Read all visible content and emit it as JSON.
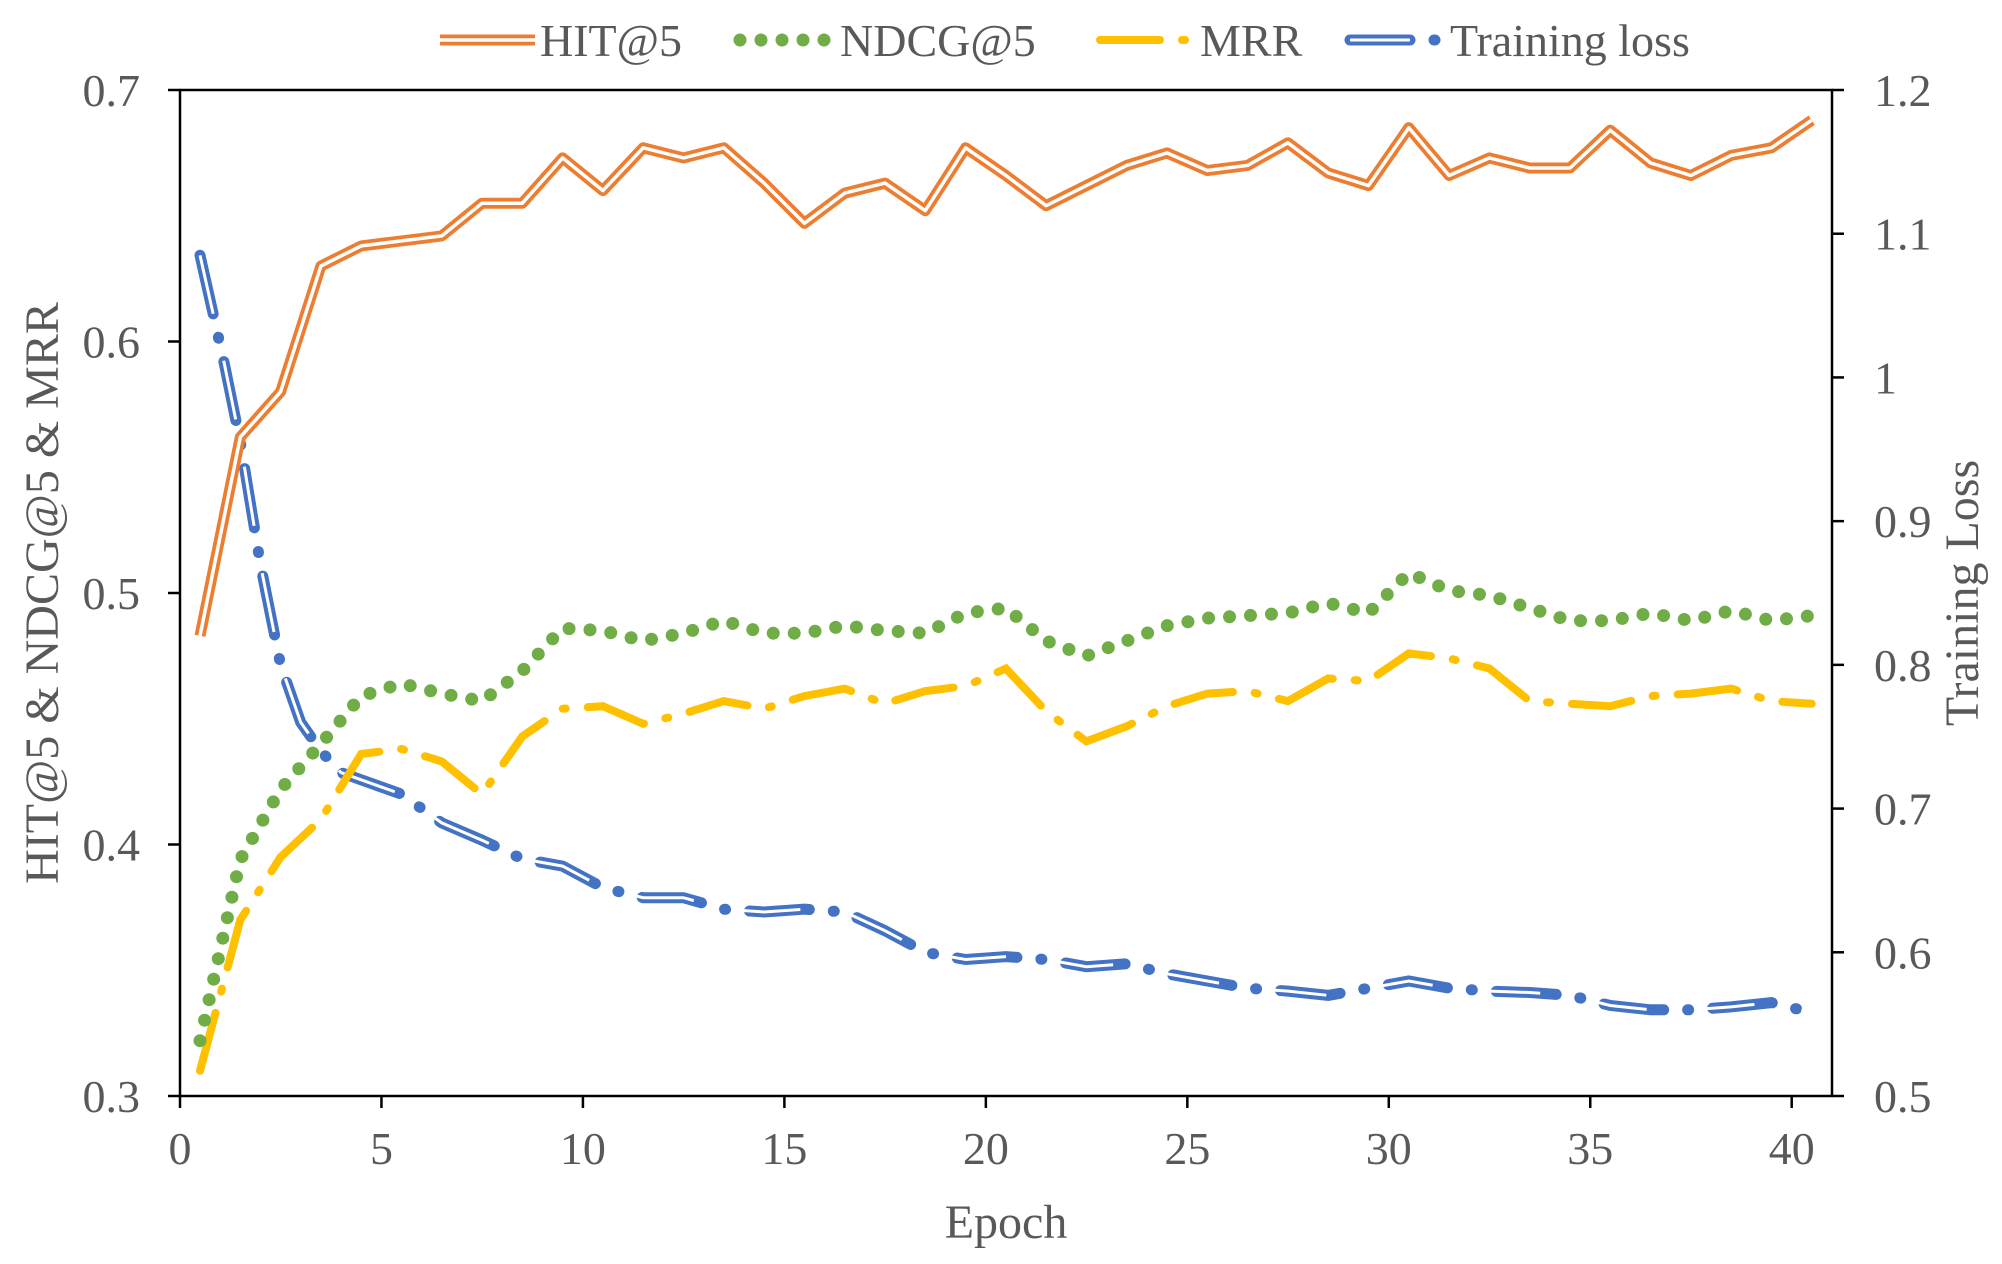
{
  "chart_data": {
    "type": "line",
    "title": "",
    "xlabel": "Epoch",
    "ylabel": "HIT@5 & NDCG@5 & MRR",
    "y2label": "Training Loss",
    "xlim": [
      0,
      41
    ],
    "ylim": [
      0.3,
      0.7
    ],
    "y2lim": [
      0.5,
      1.2
    ],
    "x_ticks": [
      "0",
      "5",
      "10",
      "15",
      "20",
      "25",
      "30",
      "35",
      "40"
    ],
    "y_ticks": [
      "0.3",
      "0.4",
      "0.5",
      "0.6",
      "0.7"
    ],
    "y2_ticks": [
      "0.5",
      "0.6",
      "0.7",
      "0.8",
      "0.9",
      "1",
      "1.1",
      "1.2"
    ],
    "legend_position": "top",
    "grid": false,
    "series": [
      {
        "name": "HIT@5",
        "axis": "left",
        "style": "double",
        "color": "#ED7D31",
        "x": [
          0,
          1,
          2,
          3,
          4,
          5,
          6,
          7,
          8,
          9,
          10,
          11,
          12,
          13,
          14,
          15,
          16,
          17,
          18,
          19,
          20,
          21,
          22,
          23,
          24,
          25,
          26,
          27,
          28,
          29,
          30,
          31,
          32,
          33,
          34,
          35,
          36,
          37,
          38,
          39,
          40
        ],
        "values": [
          0.483,
          0.562,
          0.58,
          0.63,
          0.638,
          0.64,
          0.642,
          0.655,
          0.655,
          0.673,
          0.66,
          0.677,
          0.673,
          0.677,
          0.663,
          0.647,
          0.659,
          0.663,
          0.652,
          0.677,
          0.666,
          0.654,
          0.662,
          0.67,
          0.675,
          0.668,
          0.67,
          0.679,
          0.667,
          0.662,
          0.685,
          0.666,
          0.673,
          0.669,
          0.669,
          0.684,
          0.671,
          0.666,
          0.674,
          0.677,
          0.688
        ]
      },
      {
        "name": "NDCG@5",
        "axis": "left",
        "style": "dotted",
        "color": "#70AD47",
        "x": [
          0,
          1,
          2,
          3,
          4,
          5,
          6,
          7,
          8,
          9,
          10,
          11,
          12,
          13,
          14,
          15,
          16,
          17,
          18,
          19,
          20,
          21,
          22,
          23,
          24,
          25,
          26,
          27,
          28,
          29,
          30,
          31,
          32,
          33,
          34,
          35,
          36,
          37,
          38,
          39,
          40
        ],
        "values": [
          0.322,
          0.394,
          0.422,
          0.44,
          0.459,
          0.464,
          0.46,
          0.457,
          0.469,
          0.486,
          0.485,
          0.481,
          0.484,
          0.489,
          0.484,
          0.484,
          0.487,
          0.485,
          0.484,
          0.492,
          0.494,
          0.481,
          0.475,
          0.481,
          0.487,
          0.49,
          0.491,
          0.492,
          0.496,
          0.492,
          0.508,
          0.501,
          0.499,
          0.494,
          0.489,
          0.489,
          0.492,
          0.489,
          0.493,
          0.489,
          0.491
        ]
      },
      {
        "name": "MRR",
        "axis": "left",
        "style": "dashdot",
        "color": "#FFC000",
        "x": [
          0,
          1,
          2,
          3,
          4,
          5,
          6,
          7,
          8,
          9,
          10,
          11,
          12,
          13,
          14,
          15,
          16,
          17,
          18,
          19,
          20,
          21,
          22,
          23,
          24,
          25,
          26,
          27,
          28,
          29,
          30,
          31,
          32,
          33,
          34,
          35,
          36,
          37,
          38,
          39,
          40
        ],
        "values": [
          0.31,
          0.37,
          0.395,
          0.41,
          0.436,
          0.438,
          0.433,
          0.42,
          0.443,
          0.454,
          0.455,
          0.448,
          0.452,
          0.457,
          0.454,
          0.459,
          0.462,
          0.456,
          0.461,
          0.463,
          0.47,
          0.453,
          0.441,
          0.447,
          0.455,
          0.46,
          0.461,
          0.457,
          0.466,
          0.465,
          0.476,
          0.474,
          0.47,
          0.457,
          0.456,
          0.455,
          0.459,
          0.46,
          0.462,
          0.457,
          0.456
        ]
      },
      {
        "name": "Training loss",
        "axis": "right",
        "style": "dashdot-double",
        "color": "#4472C4",
        "x": [
          0,
          0.6,
          1,
          1.5,
          2,
          2.5,
          3,
          3.5,
          4,
          5,
          6,
          7,
          8,
          9,
          10,
          11,
          12,
          13,
          14,
          15,
          16,
          17,
          18,
          19,
          20,
          21,
          22,
          23,
          24,
          25,
          26,
          27,
          28,
          29,
          30,
          31,
          32,
          33,
          34,
          35,
          36,
          37,
          38,
          39,
          40
        ],
        "values": [
          1.085,
          1.01,
          0.955,
          0.87,
          0.8,
          0.76,
          0.74,
          0.725,
          0.72,
          0.71,
          0.69,
          0.678,
          0.665,
          0.66,
          0.645,
          0.638,
          0.638,
          0.63,
          0.628,
          0.63,
          0.628,
          0.615,
          0.6,
          0.595,
          0.597,
          0.595,
          0.59,
          0.592,
          0.585,
          0.58,
          0.575,
          0.573,
          0.57,
          0.575,
          0.58,
          0.575,
          0.573,
          0.572,
          0.57,
          0.563,
          0.56,
          0.56,
          0.562,
          0.565,
          0.558
        ]
      }
    ]
  }
}
